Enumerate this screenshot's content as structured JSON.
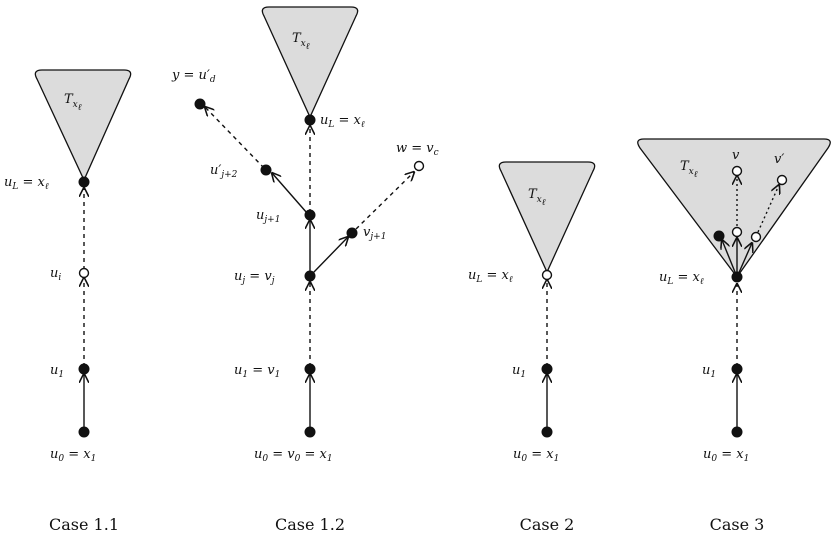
{
  "panels": [
    {
      "caption": "Case 1.1",
      "tree": "T_{x_ℓ}",
      "labels": [
        "u_L = x_ℓ",
        "u_i",
        "u_1",
        "u_0 = x_1"
      ]
    },
    {
      "caption": "Case 1.2",
      "tree": "T_{x_ℓ}",
      "labels": [
        "u_L = x_ℓ",
        "u_{j+1}",
        "u_j = v_j",
        "u_1 = v_1",
        "u_0 = v_0 = x_1",
        "u'_{j+2}",
        "y = u'_d",
        "v_{j+1}",
        "w = v_c"
      ]
    },
    {
      "caption": "Case 2",
      "tree": "T_{x_ℓ}",
      "labels": [
        "u_L = x_ℓ",
        "u_1",
        "u_0 = x_1"
      ]
    },
    {
      "caption": "Case 3",
      "tree": "T_{x_ℓ}",
      "labels": [
        "u_L = x_ℓ",
        "u_1",
        "u_0 = x_1",
        "v",
        "v'"
      ]
    }
  ]
}
